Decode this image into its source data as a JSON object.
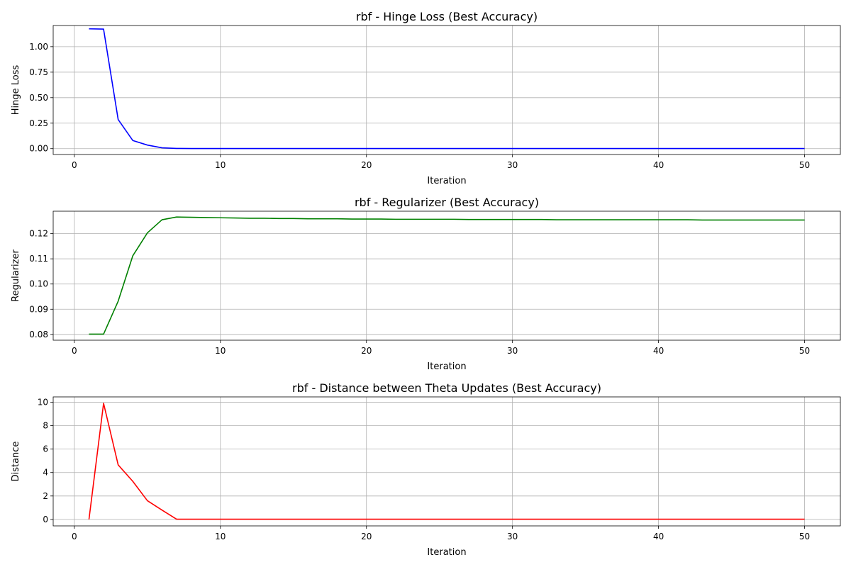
{
  "chart_data": [
    {
      "type": "line",
      "title": "rbf - Hinge Loss (Best Accuracy)",
      "xlabel": "Iteration",
      "ylabel": "Hinge Loss",
      "xlim": [
        -1.45,
        52.45
      ],
      "ylim": [
        -0.0575,
        1.2075
      ],
      "xticks": [
        "0",
        "10",
        "20",
        "30",
        "40",
        "50"
      ],
      "xtick_values": [
        0,
        10,
        20,
        30,
        40,
        50
      ],
      "yticks": [
        "0.00",
        "0.25",
        "0.50",
        "0.75",
        "1.00"
      ],
      "ytick_values": [
        0,
        0.25,
        0.5,
        0.75,
        1.0
      ],
      "grid": true,
      "color": "#0000ff",
      "x": [
        1,
        2,
        3,
        4,
        5,
        6,
        7,
        8,
        9,
        10,
        11,
        12,
        13,
        14,
        15,
        16,
        17,
        18,
        19,
        20,
        21,
        22,
        23,
        24,
        25,
        26,
        27,
        28,
        29,
        30,
        31,
        32,
        33,
        34,
        35,
        36,
        37,
        38,
        39,
        40,
        41,
        42,
        43,
        44,
        45,
        46,
        47,
        48,
        49,
        50
      ],
      "values": [
        1.175,
        1.172,
        0.285,
        0.08,
        0.035,
        0.008,
        0.002,
        0.001,
        0.001,
        0.001,
        0.001,
        0.001,
        0.001,
        0.001,
        0.001,
        0.001,
        0.001,
        0.001,
        0.001,
        0.001,
        0.001,
        0.001,
        0.001,
        0.001,
        0.001,
        0.001,
        0.001,
        0.001,
        0.001,
        0.001,
        0.001,
        0.001,
        0.001,
        0.001,
        0.001,
        0.001,
        0.001,
        0.001,
        0.001,
        0.001,
        0.001,
        0.001,
        0.001,
        0.001,
        0.001,
        0.001,
        0.001,
        0.001,
        0.001,
        0.001
      ]
    },
    {
      "type": "line",
      "title": "rbf - Regularizer (Best Accuracy)",
      "xlabel": "Iteration",
      "ylabel": "Regularizer",
      "xlim": [
        -1.45,
        52.45
      ],
      "ylim": [
        0.0777,
        0.1289
      ],
      "xticks": [
        "0",
        "10",
        "20",
        "30",
        "40",
        "50"
      ],
      "xtick_values": [
        0,
        10,
        20,
        30,
        40,
        50
      ],
      "yticks": [
        "0.08",
        "0.09",
        "0.10",
        "0.11",
        "0.12"
      ],
      "ytick_values": [
        0.08,
        0.09,
        0.1,
        0.11,
        0.12
      ],
      "grid": true,
      "color": "#008000",
      "x": [
        1,
        2,
        3,
        4,
        5,
        6,
        7,
        8,
        9,
        10,
        11,
        12,
        13,
        14,
        15,
        16,
        17,
        18,
        19,
        20,
        21,
        22,
        23,
        24,
        25,
        26,
        27,
        28,
        29,
        30,
        31,
        32,
        33,
        34,
        35,
        36,
        37,
        38,
        39,
        40,
        41,
        42,
        43,
        44,
        45,
        46,
        47,
        48,
        49,
        50
      ],
      "values": [
        0.0801,
        0.0801,
        0.0932,
        0.1112,
        0.1203,
        0.1255,
        0.1266,
        0.1265,
        0.1264,
        0.1263,
        0.1262,
        0.1261,
        0.1261,
        0.126,
        0.126,
        0.1259,
        0.1259,
        0.1259,
        0.1258,
        0.1258,
        0.1258,
        0.1257,
        0.1257,
        0.1257,
        0.1257,
        0.1257,
        0.1256,
        0.1256,
        0.1256,
        0.1256,
        0.1256,
        0.1256,
        0.1255,
        0.1255,
        0.1255,
        0.1255,
        0.1255,
        0.1255,
        0.1255,
        0.1255,
        0.1255,
        0.1255,
        0.1254,
        0.1254,
        0.1254,
        0.1254,
        0.1254,
        0.1254,
        0.1254,
        0.1254
      ]
    },
    {
      "type": "line",
      "title": "rbf - Distance between Theta Updates (Best Accuracy)",
      "xlabel": "Iteration",
      "ylabel": "Distance",
      "xlim": [
        -1.45,
        52.45
      ],
      "ylim": [
        -0.55,
        10.45
      ],
      "xticks": [
        "0",
        "10",
        "20",
        "30",
        "40",
        "50"
      ],
      "xtick_values": [
        0,
        10,
        20,
        30,
        40,
        50
      ],
      "yticks": [
        "0",
        "2",
        "4",
        "6",
        "8",
        "10"
      ],
      "ytick_values": [
        0,
        2,
        4,
        6,
        8,
        10
      ],
      "grid": true,
      "color": "#ff0000",
      "x": [
        1,
        2,
        3,
        4,
        5,
        6,
        7,
        8,
        9,
        10,
        11,
        12,
        13,
        14,
        15,
        16,
        17,
        18,
        19,
        20,
        21,
        22,
        23,
        24,
        25,
        26,
        27,
        28,
        29,
        30,
        31,
        32,
        33,
        34,
        35,
        36,
        37,
        38,
        39,
        40,
        41,
        42,
        43,
        44,
        45,
        46,
        47,
        48,
        49,
        50
      ],
      "values": [
        0.0,
        9.9,
        4.65,
        3.25,
        1.6,
        0.8,
        0.02,
        0.02,
        0.02,
        0.02,
        0.02,
        0.02,
        0.02,
        0.02,
        0.02,
        0.02,
        0.02,
        0.02,
        0.02,
        0.02,
        0.02,
        0.02,
        0.02,
        0.02,
        0.02,
        0.02,
        0.02,
        0.02,
        0.02,
        0.02,
        0.02,
        0.02,
        0.02,
        0.02,
        0.02,
        0.02,
        0.02,
        0.02,
        0.02,
        0.02,
        0.02,
        0.02,
        0.02,
        0.02,
        0.02,
        0.02,
        0.02,
        0.02,
        0.02,
        0.02
      ]
    }
  ]
}
